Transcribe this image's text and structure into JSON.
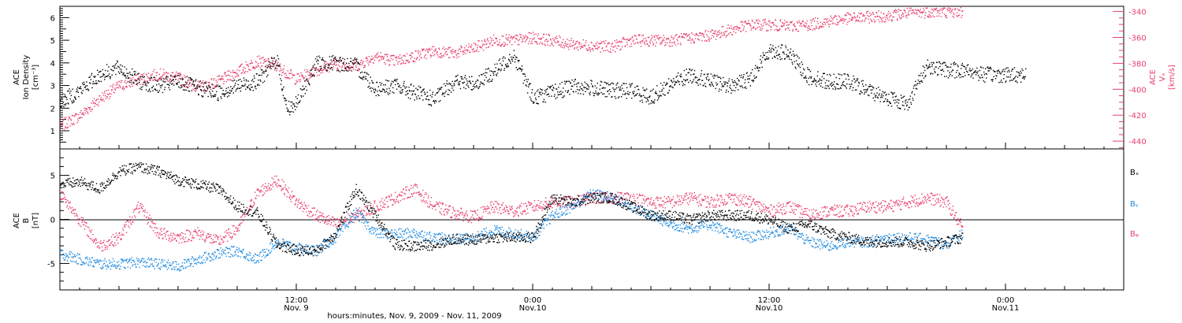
{
  "colors": {
    "density": "#000000",
    "vx": "#e8406a",
    "bx": "#000000",
    "by": "#1f8ae0",
    "bz": "#e8406a",
    "axis": "#000000"
  },
  "chart_data": [
    {
      "type": "scatter",
      "panel": "top",
      "xlabel": "hours:minutes, Nov.  9, 2009 - Nov. 11, 2009",
      "x_ticks": [
        {
          "hours": 12,
          "line1": "12:00",
          "line2": "Nov. 9"
        },
        {
          "hours": 24,
          "line1": "0:00",
          "line2": "Nov.10"
        },
        {
          "hours": 36,
          "line1": "12:00",
          "line2": "Nov.10"
        },
        {
          "hours": 48,
          "line1": "0:00",
          "line2": "Nov.11"
        }
      ],
      "xlim_hours": [
        0,
        54
      ],
      "left_axis": {
        "label_line1": "ACE",
        "label_line2": "Ion Density",
        "units": "[cm⁻³]",
        "ylim": [
          0.2,
          6.5
        ],
        "ticks": [
          "1",
          "2",
          "3",
          "4",
          "5",
          "6"
        ]
      },
      "right_axis": {
        "label_line1": "ACE",
        "label_line2": "Vₓ",
        "units": "[km/s]",
        "ylim": [
          -446,
          -336
        ],
        "ticks": [
          "-340",
          "-360",
          "-380",
          "-400",
          "-420",
          "-440"
        ]
      },
      "series": [
        {
          "key": "density",
          "axis": "left",
          "x_hours": [
            0,
            1,
            2,
            3,
            4,
            5,
            6,
            7,
            8,
            9,
            10,
            11,
            11.5,
            12,
            13,
            14,
            15,
            16,
            17,
            18,
            19,
            20,
            21,
            22,
            23,
            24,
            25,
            26,
            27,
            28,
            29,
            30,
            31,
            32,
            33,
            34,
            35,
            36,
            37,
            38,
            39,
            40,
            41,
            42,
            43,
            44,
            45,
            46,
            47,
            48,
            49
          ],
          "values": [
            2.3,
            2.8,
            3.5,
            3.8,
            3.2,
            3.0,
            3.2,
            2.9,
            2.7,
            3.0,
            3.2,
            4.2,
            2.0,
            2.2,
            4.0,
            4.0,
            3.9,
            2.9,
            3.0,
            2.7,
            2.4,
            3.2,
            3.1,
            3.6,
            4.4,
            2.5,
            2.7,
            3.0,
            2.9,
            2.8,
            2.8,
            2.5,
            3.1,
            3.5,
            3.2,
            3.0,
            3.3,
            4.6,
            4.4,
            3.4,
            3.2,
            3.2,
            2.8,
            2.5,
            2.2,
            3.9,
            3.7,
            3.7,
            3.5,
            3.5,
            3.5
          ]
        },
        {
          "key": "vx",
          "axis": "right",
          "x_hours": [
            0,
            1,
            2,
            3,
            4,
            5,
            6,
            7,
            8,
            9,
            10,
            11,
            12,
            13,
            14,
            15,
            16,
            17,
            18,
            19,
            20,
            21,
            22,
            23,
            24,
            25,
            26,
            27,
            28,
            29,
            30,
            31,
            32,
            33,
            34,
            35,
            36,
            37,
            38,
            39,
            40,
            41,
            42,
            43,
            44,
            45,
            45.8
          ],
          "values": [
            -428,
            -420,
            -407,
            -397,
            -392,
            -388,
            -391,
            -398,
            -394,
            -386,
            -378,
            -382,
            -392,
            -385,
            -380,
            -382,
            -374,
            -378,
            -374,
            -370,
            -372,
            -368,
            -362,
            -362,
            -360,
            -362,
            -365,
            -366,
            -367,
            -362,
            -362,
            -362,
            -360,
            -358,
            -354,
            -350,
            -350,
            -351,
            -350,
            -347,
            -345,
            -344,
            -343,
            -341,
            -340,
            -340,
            -340
          ]
        }
      ]
    },
    {
      "type": "scatter",
      "panel": "bottom",
      "xlim_hours": [
        0,
        54
      ],
      "left_axis": {
        "label_line1": "ACE",
        "label_line2": "B",
        "units": "[nT]",
        "ylim": [
          -8,
          8
        ],
        "ticks": [
          "-5",
          "0",
          "5"
        ]
      },
      "series": [
        {
          "key": "bx",
          "name": "Bₓ",
          "x_hours": [
            0,
            1,
            2,
            3,
            4,
            5,
            6,
            7,
            8,
            9,
            10,
            11,
            12,
            13,
            14,
            15,
            16,
            17,
            18,
            19,
            20,
            21,
            22,
            23,
            24,
            25,
            26,
            27,
            28,
            29,
            30,
            31,
            32,
            33,
            34,
            35,
            36,
            37,
            38,
            39,
            40,
            41,
            42,
            43,
            44,
            45,
            45.8
          ],
          "values": [
            4.0,
            4.3,
            3.5,
            5.5,
            6.0,
            5.5,
            4.5,
            4.0,
            3.5,
            1.5,
            0.8,
            -2.8,
            -3.5,
            -3.5,
            -1.5,
            3.5,
            0.5,
            -2.8,
            -3.0,
            -2.8,
            -2.2,
            -2.3,
            -2.0,
            -2.0,
            -2.0,
            2.5,
            2.0,
            2.5,
            2.5,
            1.5,
            0.5,
            0.5,
            0.0,
            0.5,
            0.5,
            0.5,
            0.0,
            -1.0,
            -0.5,
            -1.5,
            -2.0,
            -2.5,
            -2.5,
            -2.5,
            -3.0,
            -2.5,
            -2.0
          ]
        },
        {
          "key": "by",
          "name": "Bᵧ",
          "x_hours": [
            0,
            1,
            2,
            3,
            4,
            5,
            6,
            7,
            8,
            9,
            10,
            11,
            12,
            13,
            14,
            15,
            16,
            17,
            18,
            19,
            20,
            21,
            22,
            23,
            24,
            25,
            26,
            27,
            28,
            29,
            30,
            31,
            32,
            33,
            34,
            35,
            36,
            37,
            38,
            39,
            40,
            41,
            42,
            43,
            44,
            45,
            45.8
          ],
          "values": [
            -3.8,
            -4.5,
            -5.0,
            -5.0,
            -4.8,
            -5.0,
            -5.3,
            -4.5,
            -3.8,
            -3.5,
            -4.5,
            -2.5,
            -3.2,
            -3.5,
            -2.0,
            0.8,
            -1.5,
            -1.6,
            -1.5,
            -2.0,
            -2.2,
            -2.0,
            -1.2,
            -1.5,
            -2.0,
            0.5,
            1.5,
            3.0,
            2.5,
            1.5,
            0.5,
            -0.5,
            -1.0,
            -0.5,
            -1.5,
            -2.0,
            -1.5,
            -1.0,
            -2.5,
            -3.0,
            -2.5,
            -2.5,
            -2.0,
            -2.0,
            -2.2,
            -2.8,
            -1.5
          ]
        },
        {
          "key": "bz",
          "name": "Bᵩ",
          "x_hours": [
            0,
            1,
            2,
            3,
            4,
            5,
            6,
            7,
            8,
            9,
            10,
            11,
            12,
            13,
            14,
            15,
            16,
            17,
            18,
            19,
            20,
            21,
            22,
            23,
            24,
            25,
            26,
            27,
            28,
            29,
            30,
            31,
            32,
            33,
            34,
            35,
            36,
            37,
            38,
            39,
            40,
            41,
            42,
            43,
            44,
            45,
            45.8
          ],
          "values": [
            3.0,
            0.0,
            -3.0,
            -2.0,
            1.5,
            -1.5,
            -2.0,
            -1.5,
            -2.5,
            -1.0,
            3.0,
            4.5,
            2.0,
            0.5,
            -0.5,
            0.5,
            1.5,
            2.5,
            3.5,
            1.5,
            0.8,
            0.3,
            1.5,
            1.0,
            1.5,
            2.0,
            2.0,
            2.5,
            2.5,
            2.5,
            2.0,
            2.0,
            2.5,
            2.0,
            2.5,
            2.0,
            1.0,
            1.5,
            0.5,
            1.0,
            1.0,
            1.5,
            1.5,
            2.0,
            2.5,
            2.0,
            -1.0
          ]
        }
      ]
    }
  ]
}
